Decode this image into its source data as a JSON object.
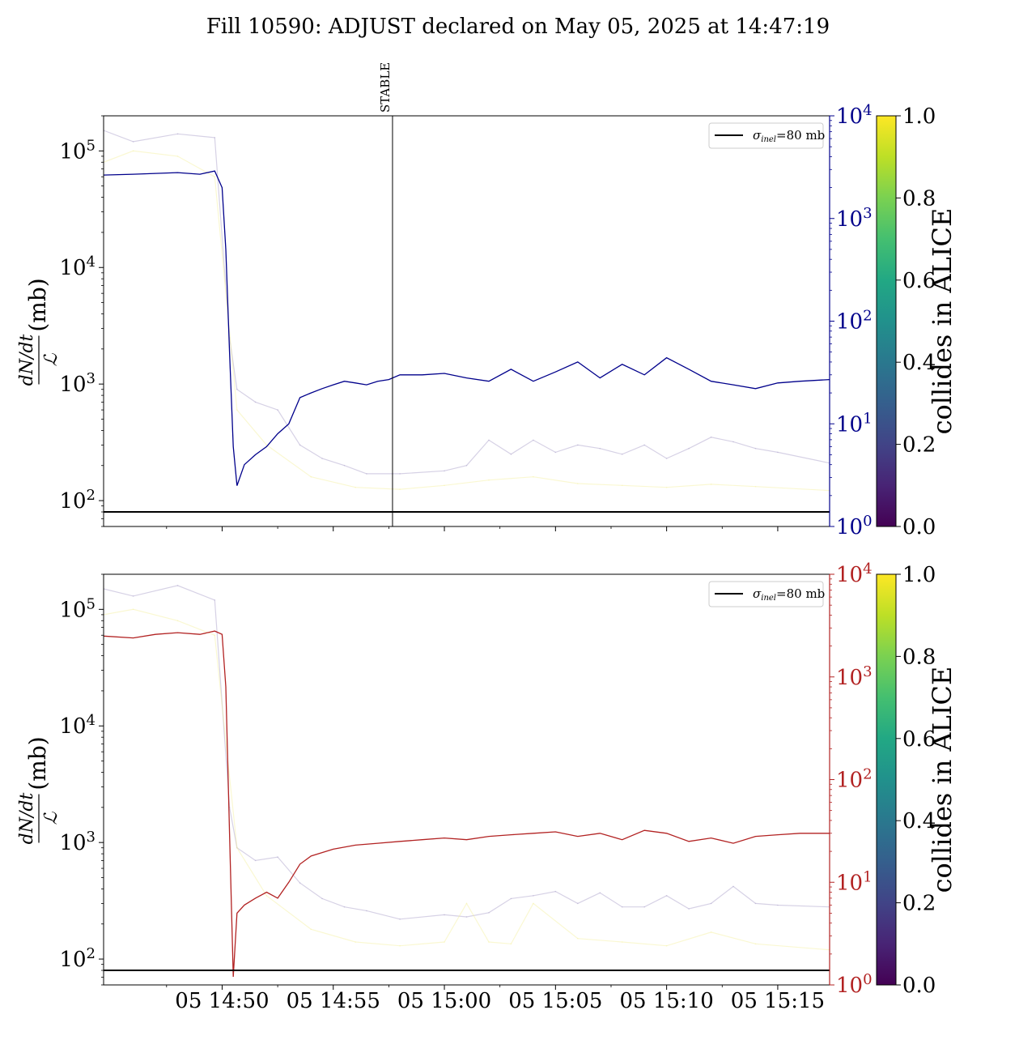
{
  "figure": {
    "title": "Fill 10590: ADJUST declared on May 05, 2025 at 14:47:19"
  },
  "chart_data": [
    {
      "type": "line",
      "panel": "top",
      "ylabel": "dN/dt / ℒ (mb)",
      "y_scale": "log",
      "ylim": [
        60,
        200000
      ],
      "y_ticks": [
        "10^2",
        "10^3",
        "10^4",
        "10^5"
      ],
      "x_ticks": [],
      "xlim_minutes_label": "05 14:44:40 – 05 15:17:20",
      "right_axis": {
        "scale": "log",
        "ylim": [
          1,
          10000
        ],
        "ticks": [
          "10^0",
          "10^1",
          "10^2",
          "10^3",
          "10^4"
        ],
        "color": "#00008b"
      },
      "legend": {
        "label": "σinel=80 mb",
        "placement": "upper-right"
      },
      "annotation": {
        "text": "STABLE",
        "x": "05 14:57:40"
      },
      "reference_line": {
        "y": 80,
        "label": "σinel=80 mb"
      },
      "colorbar": {
        "label": "collides in ALICE",
        "ticks": [
          "0.0",
          "0.2",
          "0.4",
          "0.6",
          "0.8",
          "1.0"
        ],
        "range": [
          0,
          1
        ]
      },
      "series": [
        {
          "color": "#00008b",
          "axis": "right",
          "x": [
            "14:44:40",
            "14:46:00",
            "14:47:00",
            "14:48:00",
            "14:49:00",
            "14:49:40",
            "14:50:00",
            "14:50:10",
            "14:50:20",
            "14:50:30",
            "14:50:40",
            "14:51:00",
            "14:51:30",
            "14:52:00",
            "14:52:30",
            "14:53:00",
            "14:53:30",
            "14:54:00",
            "14:54:30",
            "14:55:00",
            "14:55:30",
            "14:56:00",
            "14:56:30",
            "14:57:00",
            "14:57:30",
            "14:58:00",
            "14:59:00",
            "15:00:00",
            "15:01:00",
            "15:02:00",
            "15:03:00",
            "15:04:00",
            "15:05:00",
            "15:06:00",
            "15:07:00",
            "15:08:00",
            "15:09:00",
            "15:10:00",
            "15:11:00",
            "15:12:00",
            "15:13:00",
            "15:14:00",
            "15:15:00",
            "15:16:00",
            "15:17:20"
          ],
          "values": [
            2650,
            2700,
            2750,
            2800,
            2700,
            2900,
            2000,
            500,
            50,
            6,
            2.5,
            4,
            5,
            6,
            8,
            10,
            18,
            20,
            22,
            24,
            26,
            25,
            24,
            26,
            27,
            30,
            30,
            31,
            28,
            26,
            34,
            26,
            32,
            40,
            28,
            38,
            30,
            44,
            34,
            26,
            24,
            22,
            25,
            26,
            27
          ]
        },
        {
          "color": "#a49ac6",
          "axis": "left",
          "name": "",
          "x": [
            "14:44:40",
            "14:46:00",
            "14:48:00",
            "14:49:40",
            "14:50:20",
            "14:50:40",
            "14:51:30",
            "14:52:30",
            "14:53:30",
            "14:54:30",
            "14:55:30",
            "14:56:30",
            "14:58:00",
            "15:00:00",
            "15:01:00",
            "15:02:00",
            "15:03:00",
            "15:04:00",
            "15:05:00",
            "15:06:00",
            "15:07:00",
            "15:08:00",
            "15:09:00",
            "15:10:00",
            "15:11:00",
            "15:12:00",
            "15:13:00",
            "15:14:00",
            "15:15:00",
            "15:17:20"
          ],
          "values": [
            150000,
            120000,
            140000,
            130000,
            2500,
            900,
            700,
            600,
            300,
            230,
            200,
            170,
            170,
            180,
            200,
            330,
            250,
            330,
            260,
            300,
            280,
            250,
            300,
            230,
            280,
            350,
            320,
            280,
            260,
            210
          ]
        },
        {
          "color": "#f4ef9c",
          "axis": "left",
          "name": "",
          "x": [
            "14:44:40",
            "14:46:00",
            "14:48:00",
            "14:49:40",
            "14:50:40",
            "14:52:00",
            "14:54:00",
            "14:56:00",
            "14:58:00",
            "15:00:00",
            "15:02:00",
            "15:04:00",
            "15:06:00",
            "15:08:00",
            "15:10:00",
            "15:12:00",
            "15:14:00",
            "15:17:20"
          ],
          "values": [
            80000,
            100000,
            90000,
            60000,
            600,
            300,
            160,
            130,
            125,
            135,
            150,
            160,
            140,
            135,
            130,
            138,
            132,
            122
          ]
        }
      ]
    },
    {
      "type": "line",
      "panel": "bottom",
      "ylabel": "dN/dt / ℒ (mb)",
      "y_scale": "log",
      "ylim": [
        60,
        200000
      ],
      "y_ticks": [
        "10^2",
        "10^3",
        "10^4",
        "10^5"
      ],
      "x_ticks": [
        "05 14:50",
        "05 14:55",
        "05 15:00",
        "05 15:05",
        "05 15:10",
        "05 15:15"
      ],
      "right_axis": {
        "scale": "log",
        "ylim": [
          1,
          10000
        ],
        "ticks": [
          "10^0",
          "10^1",
          "10^2",
          "10^3",
          "10^4"
        ],
        "color": "#b22222"
      },
      "legend": {
        "label": "σinel=80 mb",
        "placement": "upper-right"
      },
      "reference_line": {
        "y": 80,
        "label": "σinel=80 mb"
      },
      "colorbar": {
        "label": "collides in ALICE",
        "ticks": [
          "0.0",
          "0.2",
          "0.4",
          "0.6",
          "0.8",
          "1.0"
        ],
        "range": [
          0,
          1
        ]
      },
      "series": [
        {
          "color": "#b22222",
          "axis": "right",
          "x": [
            "14:44:40",
            "14:46:00",
            "14:47:00",
            "14:48:00",
            "14:49:00",
            "14:49:40",
            "14:50:00",
            "14:50:10",
            "14:50:20",
            "14:50:30",
            "14:50:40",
            "14:51:00",
            "14:51:30",
            "14:52:00",
            "14:52:30",
            "14:53:00",
            "14:53:30",
            "14:54:00",
            "14:55:00",
            "14:56:00",
            "14:57:00",
            "14:58:00",
            "14:59:00",
            "15:00:00",
            "15:01:00",
            "15:02:00",
            "15:03:00",
            "15:04:00",
            "15:05:00",
            "15:06:00",
            "15:07:00",
            "15:08:00",
            "15:09:00",
            "15:10:00",
            "15:11:00",
            "15:12:00",
            "15:13:00",
            "15:14:00",
            "15:15:00",
            "15:16:00",
            "15:17:20"
          ],
          "values": [
            2500,
            2400,
            2600,
            2700,
            2600,
            2800,
            2600,
            800,
            30,
            1.2,
            5,
            6,
            7,
            8,
            7,
            10,
            15,
            18,
            21,
            23,
            24,
            25,
            26,
            27,
            26,
            28,
            29,
            30,
            31,
            28,
            30,
            26,
            32,
            30,
            25,
            27,
            24,
            28,
            29,
            30,
            30
          ]
        },
        {
          "color": "#a49ac6",
          "axis": "left",
          "name": "",
          "x": [
            "14:44:40",
            "14:46:00",
            "14:48:00",
            "14:49:40",
            "14:50:20",
            "14:50:40",
            "14:51:30",
            "14:52:30",
            "14:53:30",
            "14:54:30",
            "14:55:30",
            "14:56:30",
            "14:58:00",
            "15:00:00",
            "15:01:00",
            "15:02:00",
            "15:03:00",
            "15:04:00",
            "15:05:00",
            "15:06:00",
            "15:07:00",
            "15:08:00",
            "15:09:00",
            "15:10:00",
            "15:11:00",
            "15:12:00",
            "15:13:00",
            "15:14:00",
            "15:15:00",
            "15:17:20"
          ],
          "values": [
            150000,
            130000,
            160000,
            120000,
            2000,
            900,
            700,
            750,
            450,
            330,
            280,
            260,
            220,
            240,
            230,
            250,
            330,
            350,
            380,
            300,
            370,
            280,
            280,
            350,
            270,
            300,
            420,
            300,
            290,
            280
          ]
        },
        {
          "color": "#f4ef9c",
          "axis": "left",
          "name": "",
          "x": [
            "14:44:40",
            "14:46:00",
            "14:48:00",
            "14:49:40",
            "14:50:40",
            "14:52:00",
            "14:54:00",
            "14:56:00",
            "14:58:00",
            "15:00:00",
            "15:01:00",
            "15:02:00",
            "15:03:00",
            "15:04:00",
            "15:06:00",
            "15:08:00",
            "15:10:00",
            "15:12:00",
            "15:14:00",
            "15:17:20"
          ],
          "values": [
            90000,
            100000,
            80000,
            60000,
            900,
            350,
            180,
            140,
            130,
            140,
            300,
            140,
            135,
            300,
            150,
            140,
            130,
            170,
            135,
            120
          ]
        }
      ]
    }
  ]
}
